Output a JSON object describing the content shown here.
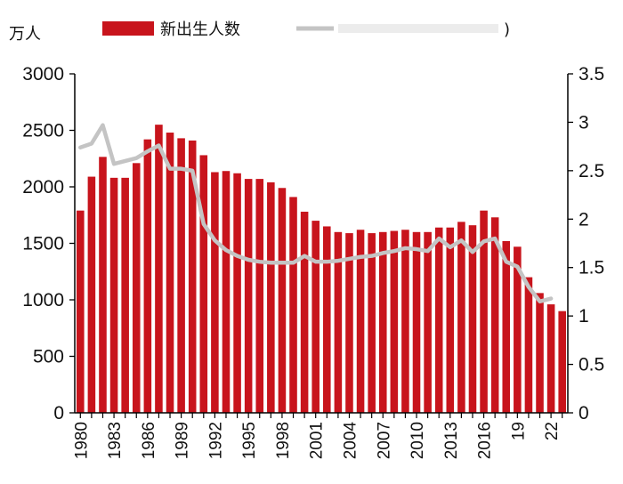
{
  "chart_data": {
    "type": "bar",
    "y_unit_label": "万人",
    "legend": {
      "bar_label": "新出生人数",
      "line_label": "",
      "line_label_suffix": ")",
      "placement": "top"
    },
    "x": [
      1980,
      1981,
      1982,
      1983,
      1984,
      1985,
      1986,
      1987,
      1988,
      1989,
      1990,
      1991,
      1992,
      1993,
      1994,
      1995,
      1996,
      1997,
      1998,
      1999,
      2000,
      2001,
      2002,
      2003,
      2004,
      2005,
      2006,
      2007,
      2008,
      2009,
      2010,
      2011,
      2012,
      2013,
      2014,
      2015,
      2016,
      2017,
      2018,
      2019,
      2020,
      2021,
      2022,
      2023
    ],
    "x_tick_labels": [
      "1980",
      "1983",
      "1986",
      "1989",
      "1992",
      "1995",
      "1998",
      "2001",
      "2004",
      "2007",
      "2010",
      "2013",
      "2016",
      "19",
      "22"
    ],
    "x_tick_years": [
      1980,
      1983,
      1986,
      1989,
      1992,
      1995,
      1998,
      2001,
      2004,
      2007,
      2010,
      2013,
      2016,
      2019,
      2022
    ],
    "series": [
      {
        "type": "bar",
        "axis": "left",
        "values": [
          1790,
          2090,
          2265,
          2080,
          2080,
          2210,
          2420,
          2550,
          2480,
          2430,
          2410,
          2280,
          2130,
          2140,
          2120,
          2070,
          2070,
          2040,
          1990,
          1910,
          1780,
          1700,
          1650,
          1600,
          1590,
          1620,
          1590,
          1600,
          1610,
          1620,
          1600,
          1600,
          1640,
          1640,
          1690,
          1660,
          1790,
          1730,
          1520,
          1470,
          1200,
          1060,
          960,
          900
        ]
      },
      {
        "type": "line",
        "axis": "right",
        "x": [
          1980,
          1981,
          1982,
          1983,
          1984,
          1985,
          1986,
          1987,
          1988,
          1989,
          1990,
          1991,
          1992,
          1993,
          1994,
          1995,
          1996,
          1997,
          1998,
          1999,
          2000,
          2001,
          2002,
          2003,
          2004,
          2005,
          2006,
          2007,
          2008,
          2009,
          2010,
          2011,
          2012,
          2013,
          2014,
          2015,
          2016,
          2017,
          2018,
          2019,
          2020,
          2021,
          2022
        ],
        "values": [
          2.74,
          2.78,
          2.97,
          2.57,
          2.6,
          2.63,
          2.7,
          2.76,
          2.52,
          2.52,
          2.5,
          1.95,
          1.78,
          1.68,
          1.62,
          1.58,
          1.56,
          1.55,
          1.55,
          1.55,
          1.62,
          1.56,
          1.56,
          1.57,
          1.59,
          1.61,
          1.62,
          1.65,
          1.67,
          1.7,
          1.69,
          1.67,
          1.8,
          1.71,
          1.78,
          1.66,
          1.77,
          1.8,
          1.56,
          1.51,
          1.3,
          1.15,
          1.18
        ]
      }
    ],
    "left_axis": {
      "ylim": [
        0,
        3000
      ],
      "ticks": [
        "0",
        "500",
        "1000",
        "1500",
        "2000",
        "2500",
        "3000"
      ]
    },
    "right_axis": {
      "ylim": [
        0,
        3.5
      ],
      "ticks": [
        "0",
        "0.5",
        "1",
        "1.5",
        "2",
        "2.5",
        "3",
        "3.5"
      ]
    },
    "grid": false,
    "colors": {
      "bar": "#c8141c",
      "line": "#c4c4c4",
      "axis": "#000000"
    }
  }
}
